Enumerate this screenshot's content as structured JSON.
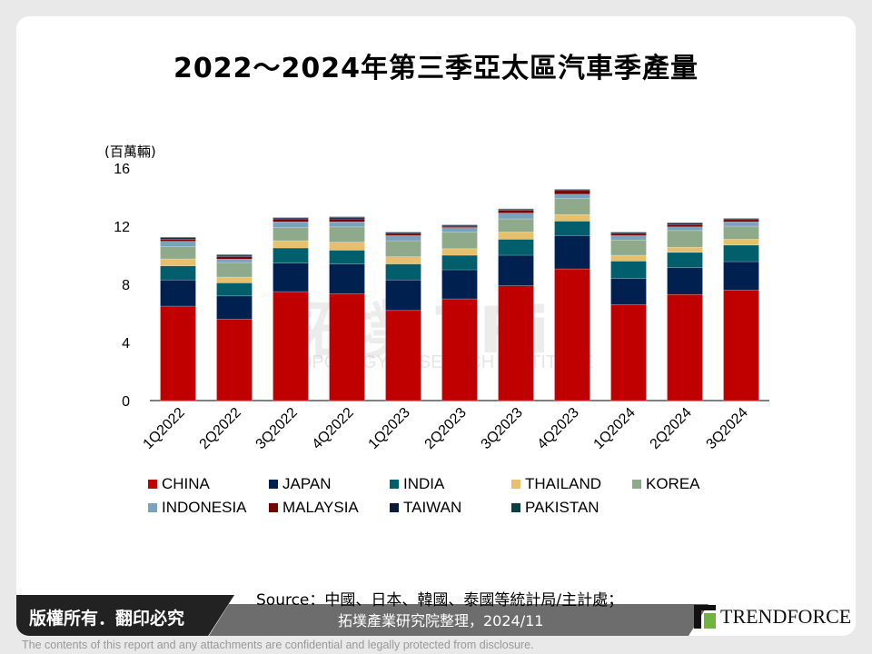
{
  "chart_data": {
    "type": "bar",
    "stacked": true,
    "title": "2022～2024年第三季亞太區汽車季產量",
    "ylabel": "(百萬輛)",
    "xlabel": "",
    "ylim": [
      0,
      16
    ],
    "yticks": [
      0,
      4,
      8,
      12,
      16
    ],
    "grid": false,
    "legend_position": "bottom",
    "categories": [
      "1Q2022",
      "2Q2022",
      "3Q2022",
      "4Q2022",
      "1Q2023",
      "2Q2023",
      "3Q2023",
      "4Q2023",
      "1Q2024",
      "2Q2024",
      "3Q2024"
    ],
    "series": [
      {
        "name": "CHINA",
        "color": "#c00000",
        "values": [
          6.5,
          5.6,
          7.5,
          7.35,
          6.2,
          7.0,
          7.9,
          9.06,
          6.6,
          7.3,
          7.6
        ]
      },
      {
        "name": "JAPAN",
        "color": "#002050",
        "values": [
          1.8,
          1.6,
          1.96,
          2.05,
          2.1,
          2.0,
          2.1,
          2.29,
          1.8,
          1.85,
          1.96
        ]
      },
      {
        "name": "INDIA",
        "color": "#005f6b",
        "values": [
          0.97,
          0.9,
          1.04,
          0.95,
          1.1,
          1.0,
          1.1,
          1.0,
          1.2,
          1.05,
          1.14
        ]
      },
      {
        "name": "THAILAND",
        "color": "#e6c06a",
        "values": [
          0.48,
          0.4,
          0.5,
          0.55,
          0.5,
          0.45,
          0.5,
          0.45,
          0.4,
          0.35,
          0.4
        ]
      },
      {
        "name": "KOREA",
        "color": "#8faa8a",
        "values": [
          0.85,
          1.0,
          0.9,
          1.05,
          1.1,
          1.15,
          0.9,
          1.1,
          1.05,
          1.15,
          0.9
        ]
      },
      {
        "name": "INDONESIA",
        "color": "#7aa2bd",
        "values": [
          0.36,
          0.23,
          0.4,
          0.35,
          0.35,
          0.3,
          0.4,
          0.3,
          0.3,
          0.25,
          0.3
        ]
      },
      {
        "name": "MALAYSIA",
        "color": "#7a0000",
        "values": [
          0.14,
          0.17,
          0.2,
          0.2,
          0.15,
          0.1,
          0.2,
          0.25,
          0.15,
          0.15,
          0.15
        ]
      },
      {
        "name": "TAIWAN",
        "color": "#0b1a3a",
        "values": [
          0.1,
          0.1,
          0.07,
          0.1,
          0.07,
          0.07,
          0.07,
          0.07,
          0.07,
          0.1,
          0.07
        ]
      },
      {
        "name": "PAKISTAN",
        "color": "#0a3f44",
        "values": [
          0.05,
          0.05,
          0.03,
          0.05,
          0.03,
          0.03,
          0.03,
          0.03,
          0.03,
          0.05,
          0.03
        ]
      }
    ]
  },
  "watermark": {
    "text": "拓墣TRi",
    "subtext": "TOPOLOGY RESEARCH INSTITUTE"
  },
  "footer": {
    "copyright": "版權所有．翻印必究",
    "source_line1": "Source：中國、日本、韓國、泰國等統計局/主計處；",
    "source_line2": "拓墣產業研究院整理，2024/11",
    "logo_text": "TRENDFORCE",
    "disclaimer": "The contents of this report and any attachments are confidential and legally protected from disclosure."
  }
}
